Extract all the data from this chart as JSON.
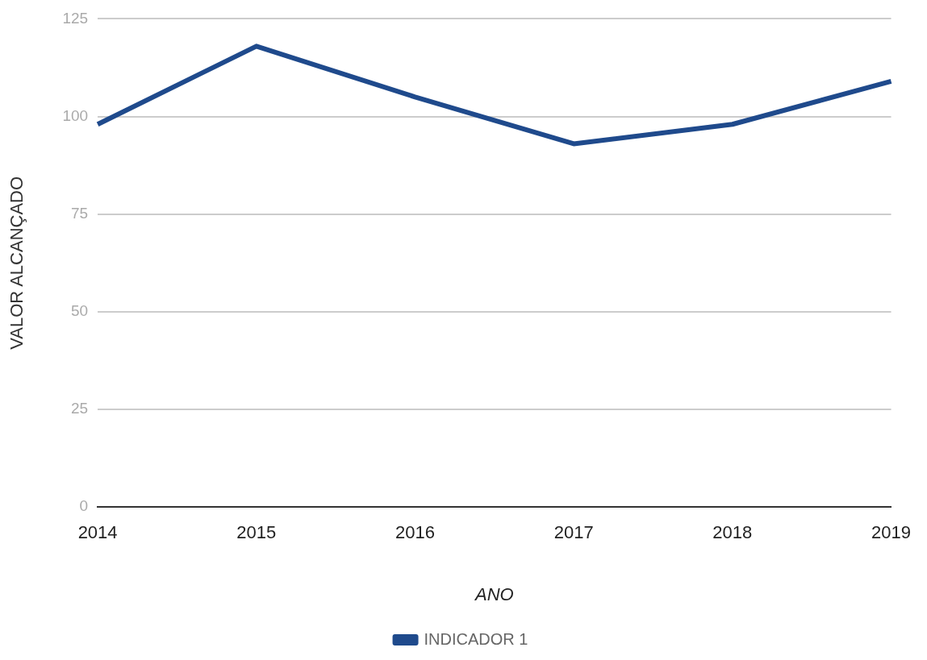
{
  "chart_data": {
    "type": "line",
    "xlabel": "ANO",
    "ylabel": "VALOR ALCANÇADO",
    "categories": [
      "2014",
      "2015",
      "2016",
      "2017",
      "2018",
      "2019"
    ],
    "series": [
      {
        "name": "INDICADOR 1",
        "color": "#1f4a8c",
        "values": [
          98,
          118,
          105,
          93,
          98,
          109
        ]
      }
    ],
    "ylim": [
      0,
      125
    ],
    "yticks": [
      0,
      25,
      50,
      75,
      100,
      125
    ],
    "grid": "y",
    "legend": "bottom",
    "marker": "none",
    "line_style": "solid"
  }
}
